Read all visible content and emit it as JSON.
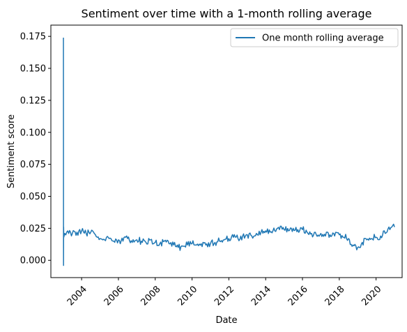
{
  "chart_data": {
    "type": "line",
    "title": "Sentiment over time with a 1-month rolling average",
    "xlabel": "Date",
    "ylabel": "Sentiment score",
    "xlim": [
      "2002-05-01",
      "2021-06-01"
    ],
    "ylim": [
      -0.0135,
      0.1838
    ],
    "x_ticks": [
      "2004",
      "2006",
      "2008",
      "2010",
      "2012",
      "2014",
      "2016",
      "2018",
      "2020"
    ],
    "y_ticks": [
      "0.000",
      "0.025",
      "0.050",
      "0.075",
      "0.100",
      "0.125",
      "0.150",
      "0.175"
    ],
    "grid": false,
    "legend": {
      "position": "top-right",
      "entries": [
        "One month rolling average"
      ]
    },
    "series": [
      {
        "name": "One month rolling average",
        "color": "#1f77b4",
        "points": [
          [
            "2003-01-05",
            0.174
          ],
          [
            "2003-01-07",
            -0.004
          ],
          [
            "2003-01-09",
            0.026
          ],
          [
            "2003-01-12",
            0.018
          ],
          [
            "2003-02-01",
            0.021
          ],
          [
            "2003-04-01",
            0.023
          ],
          [
            "2003-07-01",
            0.021
          ],
          [
            "2003-10-01",
            0.022
          ],
          [
            "2004-01-01",
            0.023
          ],
          [
            "2004-04-01",
            0.021
          ],
          [
            "2004-07-01",
            0.022
          ],
          [
            "2004-10-01",
            0.02
          ],
          [
            "2005-01-01",
            0.017
          ],
          [
            "2005-04-01",
            0.016
          ],
          [
            "2005-07-01",
            0.017
          ],
          [
            "2005-10-01",
            0.015
          ],
          [
            "2006-01-01",
            0.016
          ],
          [
            "2006-04-01",
            0.015
          ],
          [
            "2006-07-01",
            0.017
          ],
          [
            "2006-10-01",
            0.014
          ],
          [
            "2007-01-01",
            0.016
          ],
          [
            "2007-04-01",
            0.015
          ],
          [
            "2007-07-01",
            0.014
          ],
          [
            "2007-10-01",
            0.016
          ],
          [
            "2008-01-01",
            0.014
          ],
          [
            "2008-04-01",
            0.013
          ],
          [
            "2008-07-01",
            0.015
          ],
          [
            "2008-10-01",
            0.013
          ],
          [
            "2009-01-01",
            0.012
          ],
          [
            "2009-04-01",
            0.01
          ],
          [
            "2009-07-01",
            0.011
          ],
          [
            "2009-10-01",
            0.012
          ],
          [
            "2010-01-01",
            0.013
          ],
          [
            "2010-04-01",
            0.012
          ],
          [
            "2010-07-01",
            0.013
          ],
          [
            "2010-10-01",
            0.012
          ],
          [
            "2011-01-01",
            0.013
          ],
          [
            "2011-04-01",
            0.014
          ],
          [
            "2011-07-01",
            0.015
          ],
          [
            "2011-10-01",
            0.016
          ],
          [
            "2012-01-01",
            0.017
          ],
          [
            "2012-04-01",
            0.018
          ],
          [
            "2012-07-01",
            0.017
          ],
          [
            "2012-10-01",
            0.019
          ],
          [
            "2013-01-01",
            0.02
          ],
          [
            "2013-04-01",
            0.019
          ],
          [
            "2013-07-01",
            0.021
          ],
          [
            "2013-10-01",
            0.022
          ],
          [
            "2014-01-01",
            0.023
          ],
          [
            "2014-04-01",
            0.022
          ],
          [
            "2014-07-01",
            0.023
          ],
          [
            "2014-10-01",
            0.024
          ],
          [
            "2015-01-01",
            0.024
          ],
          [
            "2015-04-01",
            0.023
          ],
          [
            "2015-07-01",
            0.025
          ],
          [
            "2015-10-01",
            0.024
          ],
          [
            "2016-01-01",
            0.024
          ],
          [
            "2016-04-01",
            0.022
          ],
          [
            "2016-07-01",
            0.021
          ],
          [
            "2016-10-01",
            0.02
          ],
          [
            "2017-01-01",
            0.021
          ],
          [
            "2017-04-01",
            0.019
          ],
          [
            "2017-07-01",
            0.02
          ],
          [
            "2017-10-01",
            0.019
          ],
          [
            "2018-01-01",
            0.02
          ],
          [
            "2018-04-01",
            0.018
          ],
          [
            "2018-07-01",
            0.017
          ],
          [
            "2018-10-01",
            0.012
          ],
          [
            "2019-01-01",
            0.01
          ],
          [
            "2019-04-01",
            0.014
          ],
          [
            "2019-07-01",
            0.016
          ],
          [
            "2019-10-01",
            0.017
          ],
          [
            "2020-01-01",
            0.018
          ],
          [
            "2020-04-01",
            0.019
          ],
          [
            "2020-07-01",
            0.021
          ],
          [
            "2020-10-01",
            0.024
          ],
          [
            "2021-01-01",
            0.026
          ]
        ]
      }
    ]
  }
}
